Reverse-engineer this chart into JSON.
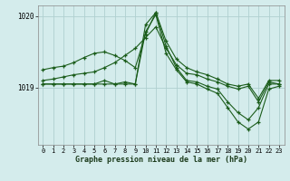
{
  "title": "Graphe pression niveau de la mer (hPa)",
  "bg_color": "#d4ecec",
  "grid_color": "#b0d0d0",
  "line_color": "#1a5c1a",
  "xlim": [
    -0.5,
    23.5
  ],
  "ylim": [
    1018.2,
    1020.15
  ],
  "yticks": [
    1019,
    1020
  ],
  "xticks": [
    0,
    1,
    2,
    3,
    4,
    5,
    6,
    7,
    8,
    9,
    10,
    11,
    12,
    13,
    14,
    15,
    16,
    17,
    18,
    19,
    20,
    21,
    22,
    23
  ],
  "series1": [
    1019.25,
    1019.28,
    1019.3,
    1019.35,
    1019.42,
    1019.48,
    1019.5,
    1019.45,
    1019.38,
    1019.28,
    1019.75,
    1020.05,
    1019.65,
    1019.4,
    1019.28,
    1019.22,
    1019.18,
    1019.12,
    1019.05,
    1019.02,
    1019.05,
    1018.85,
    1019.1,
    1019.1
  ],
  "series2": [
    1019.1,
    1019.12,
    1019.15,
    1019.18,
    1019.2,
    1019.22,
    1019.28,
    1019.35,
    1019.45,
    1019.55,
    1019.7,
    1019.85,
    1019.55,
    1019.32,
    1019.2,
    1019.18,
    1019.12,
    1019.08,
    1019.02,
    1018.98,
    1019.02,
    1018.8,
    1019.08,
    1019.05
  ],
  "series3": [
    1019.05,
    1019.05,
    1019.05,
    1019.05,
    1019.05,
    1019.05,
    1019.1,
    1019.05,
    1019.08,
    1019.05,
    1019.88,
    1020.05,
    1019.58,
    1019.28,
    1019.1,
    1019.08,
    1019.02,
    1018.98,
    1018.8,
    1018.65,
    1018.55,
    1018.72,
    1019.05,
    1019.05
  ],
  "series4": [
    1019.05,
    1019.05,
    1019.05,
    1019.05,
    1019.05,
    1019.05,
    1019.05,
    1019.05,
    1019.05,
    1019.05,
    1019.78,
    1020.02,
    1019.48,
    1019.25,
    1019.08,
    1019.05,
    1018.98,
    1018.92,
    1018.72,
    1018.52,
    1018.42,
    1018.52,
    1018.98,
    1019.02
  ]
}
